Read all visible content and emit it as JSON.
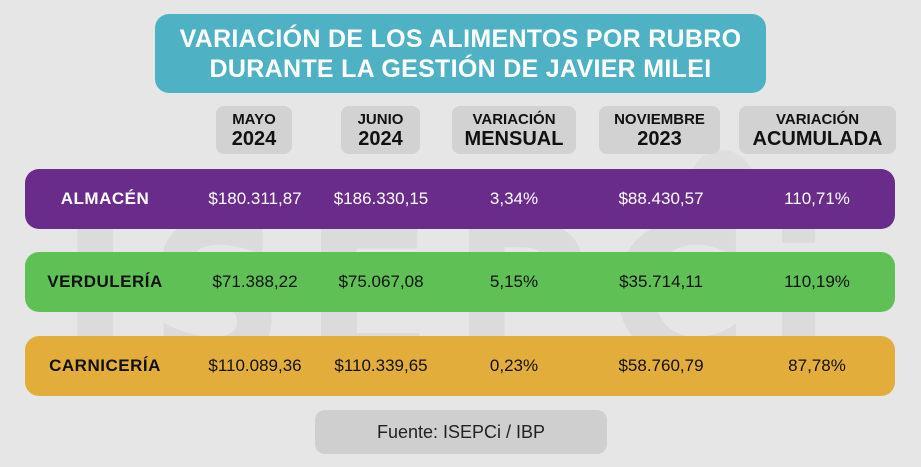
{
  "title": {
    "line1": "VARIACIÓN DE LOS ALIMENTOS POR RUBRO",
    "line2": "DURANTE LA GESTIÓN DE JAVIER MILEI"
  },
  "watermark": "ISEPCi",
  "colors": {
    "title_bg": "#4fb2c4",
    "almacen": "#6a2c8a",
    "verduleria": "#5fc056",
    "carniceria": "#e3ad3c",
    "header_bg": "#d2d2d2"
  },
  "chart_data": {
    "type": "table",
    "title": "VARIACIÓN DE LOS ALIMENTOS POR RUBRO DURANTE LA GESTIÓN DE JAVIER MILEI",
    "columns": [
      {
        "line1": "MAYO",
        "line2": "2024"
      },
      {
        "line1": "JUNIO",
        "line2": "2024"
      },
      {
        "line1": "VARIACIÓN",
        "line2": "MENSUAL"
      },
      {
        "line1": "NOVIEMBRE",
        "line2": "2023"
      },
      {
        "line1": "VARIACIÓN",
        "line2": "ACUMULADA"
      }
    ],
    "rows": [
      {
        "label": "ALMACÉN",
        "values": [
          "$180.311,87",
          "$186.330,15",
          "3,34%",
          "$88.430,57",
          "110,71%"
        ]
      },
      {
        "label": "VERDULERÍA",
        "values": [
          "$71.388,22",
          "$75.067,08",
          "5,15%",
          "$35.714,11",
          "110,19%"
        ]
      },
      {
        "label": "CARNICERÍA",
        "values": [
          "$110.089,36",
          "$110.339,65",
          "0,23%",
          "$58.760,79",
          "87,78%"
        ]
      }
    ]
  },
  "source": "Fuente: ISEPCi / IBP"
}
